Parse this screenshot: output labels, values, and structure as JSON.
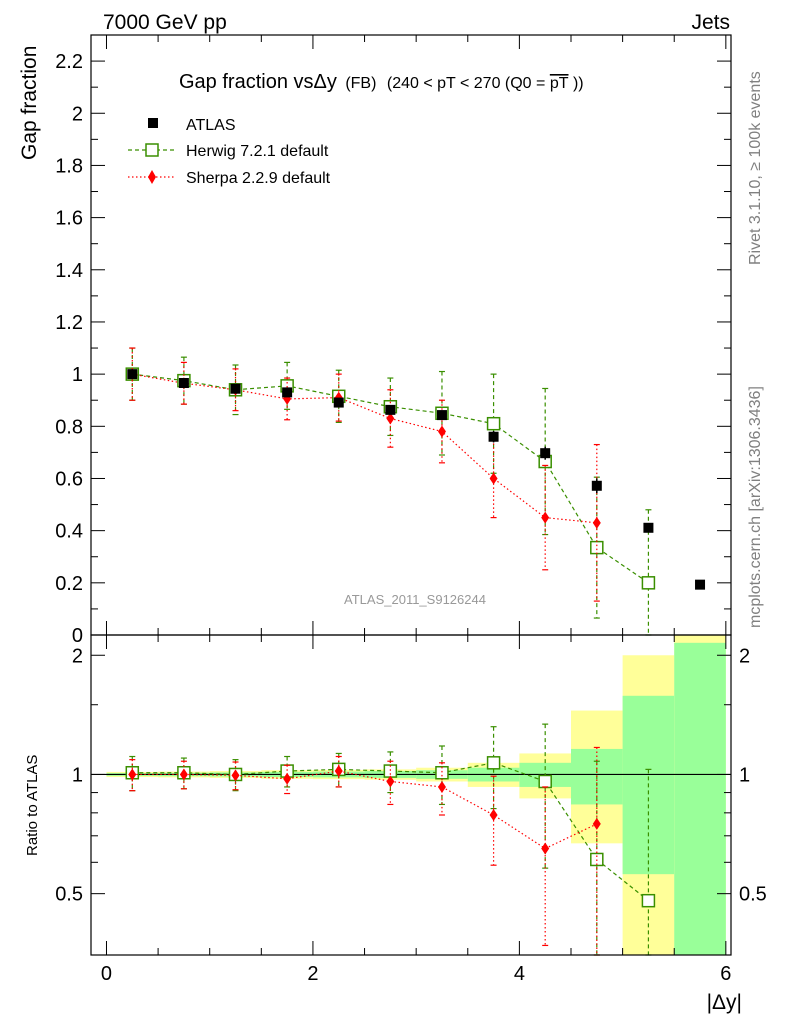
{
  "header": {
    "energy_label": "7000 GeV pp",
    "process_label": "Jets"
  },
  "side_labels": {
    "rivet": "Rivet 3.1.10, ≥ 100k events",
    "mcplots": "mcplots.cern.ch [arXiv:1306.3436]"
  },
  "colors": {
    "atlas": "#000000",
    "herwig": "#3a8f00",
    "sherpa": "#ff0000",
    "band_inner": "#99ff99",
    "band_outer": "#ffff99",
    "watermark": "#999999",
    "side_text": "#808080"
  },
  "chart_data": [
    {
      "type": "scatter",
      "panel": "main",
      "title": {
        "main": "Gap fraction vsΔy",
        "sub1": "(FB)",
        "sub2": "(240 < pT < 270 (Q0 =",
        "sub3": "pT",
        "sub4": "))"
      },
      "ylabel": "Gap fraction",
      "xlabel": "",
      "xlim": [
        -0.15,
        6.05
      ],
      "ylim": [
        0,
        2.3
      ],
      "y_ticks": [
        0,
        0.2,
        0.4,
        0.6,
        0.8,
        1,
        1.2,
        1.4,
        1.6,
        1.8,
        2,
        2.2
      ],
      "y_tick_labels": [
        "0",
        "0.2",
        "0.4",
        "0.6",
        "0.8",
        "1",
        "1.2",
        "1.4",
        "1.6",
        "1.8",
        "2",
        "2.2"
      ],
      "watermark": "ATLAS_2011_S9126244",
      "legend_placement": "top-left",
      "series": [
        {
          "name": "ATLAS",
          "style": "data",
          "x": [
            0.25,
            0.75,
            1.25,
            1.75,
            2.25,
            2.75,
            3.25,
            3.75,
            4.25,
            4.75,
            5.25,
            5.75
          ],
          "y": [
            1.0,
            0.966,
            0.944,
            0.93,
            0.891,
            0.863,
            0.843,
            0.76,
            0.697,
            0.572,
            0.411,
            0.193
          ],
          "yerr": [
            0.008,
            0.01,
            0.012,
            0.012,
            0.014,
            0.016,
            0.018,
            0.022,
            0.025,
            0.028,
            0.015,
            0.01
          ]
        },
        {
          "name": "Herwig 7.2.1 default",
          "style": "herwig",
          "x": [
            0.25,
            0.75,
            1.25,
            1.75,
            2.25,
            2.75,
            3.25,
            3.75,
            4.25,
            4.75,
            5.25
          ],
          "y": [
            1.0,
            0.975,
            0.94,
            0.955,
            0.915,
            0.875,
            0.85,
            0.81,
            0.665,
            0.335,
            0.2
          ],
          "yerr": [
            0.1,
            0.09,
            0.095,
            0.09,
            0.1,
            0.11,
            0.16,
            0.19,
            0.28,
            0.27,
            0.28
          ]
        },
        {
          "name": "Sherpa 2.2.9 default",
          "style": "sherpa",
          "x": [
            0.25,
            0.75,
            1.25,
            1.75,
            2.25,
            2.75,
            3.25,
            3.75,
            4.25,
            4.75
          ],
          "y": [
            1.0,
            0.965,
            0.94,
            0.905,
            0.91,
            0.83,
            0.78,
            0.6,
            0.45,
            0.43
          ],
          "yerr": [
            0.1,
            0.08,
            0.08,
            0.08,
            0.09,
            0.11,
            0.12,
            0.15,
            0.2,
            0.3
          ]
        }
      ]
    },
    {
      "type": "scatter",
      "panel": "ratio",
      "ylabel": "Ratio to ATLAS",
      "xlabel": "|Δy|",
      "xlim": [
        -0.15,
        6.05
      ],
      "ylim": [
        0.35,
        2.25
      ],
      "x_ticks": [
        0,
        2,
        4,
        6
      ],
      "x_tick_labels": [
        "0",
        "2",
        "4",
        "6"
      ],
      "y_ticks": [
        0.5,
        1,
        2
      ],
      "y_tick_labels": [
        "0.5",
        "1",
        "2"
      ],
      "bands": [
        {
          "x0": 0.0,
          "x1": 0.5,
          "inner": [
            0.992,
            1.008
          ],
          "outer": [
            0.985,
            1.015
          ]
        },
        {
          "x0": 0.5,
          "x1": 1.0,
          "inner": [
            0.99,
            1.01
          ],
          "outer": [
            0.983,
            1.017
          ]
        },
        {
          "x0": 1.0,
          "x1": 1.5,
          "inner": [
            0.988,
            1.012
          ],
          "outer": [
            0.98,
            1.02
          ]
        },
        {
          "x0": 1.5,
          "x1": 2.0,
          "inner": [
            0.985,
            1.015
          ],
          "outer": [
            0.975,
            1.025
          ]
        },
        {
          "x0": 2.0,
          "x1": 2.5,
          "inner": [
            0.983,
            1.017
          ],
          "outer": [
            0.973,
            1.027
          ]
        },
        {
          "x0": 2.5,
          "x1": 3.0,
          "inner": [
            0.98,
            1.02
          ],
          "outer": [
            0.97,
            1.03
          ]
        },
        {
          "x0": 3.0,
          "x1": 3.5,
          "inner": [
            0.975,
            1.025
          ],
          "outer": [
            0.96,
            1.04
          ]
        },
        {
          "x0": 3.5,
          "x1": 4.0,
          "inner": [
            0.96,
            1.04
          ],
          "outer": [
            0.93,
            1.07
          ]
        },
        {
          "x0": 4.0,
          "x1": 4.5,
          "inner": [
            0.93,
            1.07
          ],
          "outer": [
            0.87,
            1.13
          ]
        },
        {
          "x0": 4.5,
          "x1": 5.0,
          "inner": [
            0.84,
            1.16
          ],
          "outer": [
            0.67,
            1.45
          ]
        },
        {
          "x0": 5.0,
          "x1": 5.5,
          "inner": [
            0.56,
            1.58
          ],
          "outer": [
            0.35,
            2.0
          ]
        },
        {
          "x0": 5.5,
          "x1": 6.0,
          "inner": [
            0.35,
            2.15
          ],
          "outer": [
            0.35,
            2.25
          ]
        }
      ],
      "series": [
        {
          "name": "Herwig 7.2.1 default",
          "style": "herwig",
          "x": [
            0.25,
            0.75,
            1.25,
            1.75,
            2.25,
            2.75,
            3.25,
            3.75,
            4.25,
            4.75,
            5.25
          ],
          "y": [
            1.01,
            1.01,
            1.0,
            1.02,
            1.03,
            1.02,
            1.01,
            1.07,
            0.96,
            0.61,
            0.48
          ],
          "yerr": [
            0.1,
            0.09,
            0.09,
            0.09,
            0.1,
            0.12,
            0.17,
            0.25,
            0.38,
            0.47,
            0.55
          ]
        },
        {
          "name": "Sherpa 2.2.9 default",
          "style": "sherpa",
          "x": [
            0.25,
            0.75,
            1.25,
            1.75,
            2.25,
            2.75,
            3.25,
            3.75,
            4.25,
            4.75
          ],
          "y": [
            1.0,
            1.0,
            0.995,
            0.975,
            1.02,
            0.96,
            0.93,
            0.79,
            0.65,
            0.75
          ],
          "yerr": [
            0.09,
            0.08,
            0.08,
            0.08,
            0.09,
            0.12,
            0.14,
            0.2,
            0.28,
            0.42
          ]
        }
      ]
    }
  ]
}
